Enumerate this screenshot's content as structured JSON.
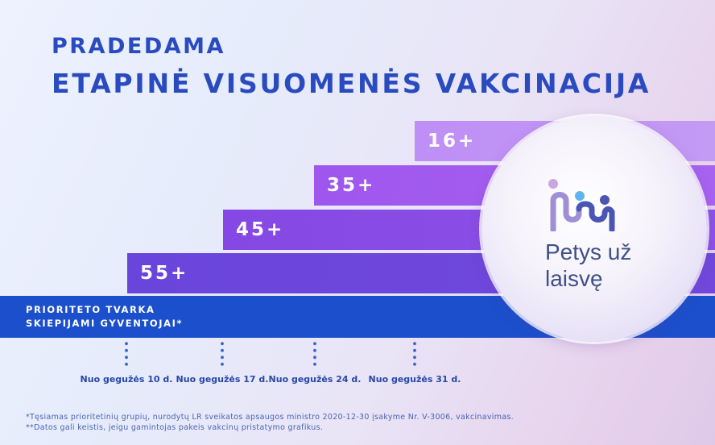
{
  "heading": {
    "line1": "PRADEDAMA",
    "line2": "ETAPINĖ VISUOMENĖS VAKCINACIJA"
  },
  "age_groups": [
    {
      "label": "16+"
    },
    {
      "label": "35+"
    },
    {
      "label": "45+"
    },
    {
      "label": "55+"
    }
  ],
  "priority_bar": {
    "line1": "PRIORITETO TVARKA",
    "line2": "SKIEPIJAMI GYVENTOJAI*"
  },
  "timeline": [
    {
      "label": "Nuo gegužės 10 d."
    },
    {
      "label": "Nuo gegužės 17 d."
    },
    {
      "label": "Nuo gegužės 24 d."
    },
    {
      "label": "Nuo gegužės 31 d."
    }
  ],
  "logo": {
    "icon": "people-icon",
    "line1": "Petys už",
    "line2": "laisvę"
  },
  "footnotes": [
    "*Tęsiamas prioritetinių grupių, nurodytų LR sveikatos apsaugos ministro 2020-12-30 įsakyme Nr. V-3006, vakcinavimas.",
    "**Datos gali keistis, jeigu gamintojas pakeis vakcinų pristatymo grafikus."
  ],
  "colors": {
    "title": "#2a4bc0",
    "priority_bar": "#1c4fcb",
    "bar_16": "#be8ff6",
    "bar_35": "#9f56ee",
    "bar_45": "#8548e4",
    "bar_55": "#6a45dc",
    "logo_text": "#3f4f8a"
  }
}
